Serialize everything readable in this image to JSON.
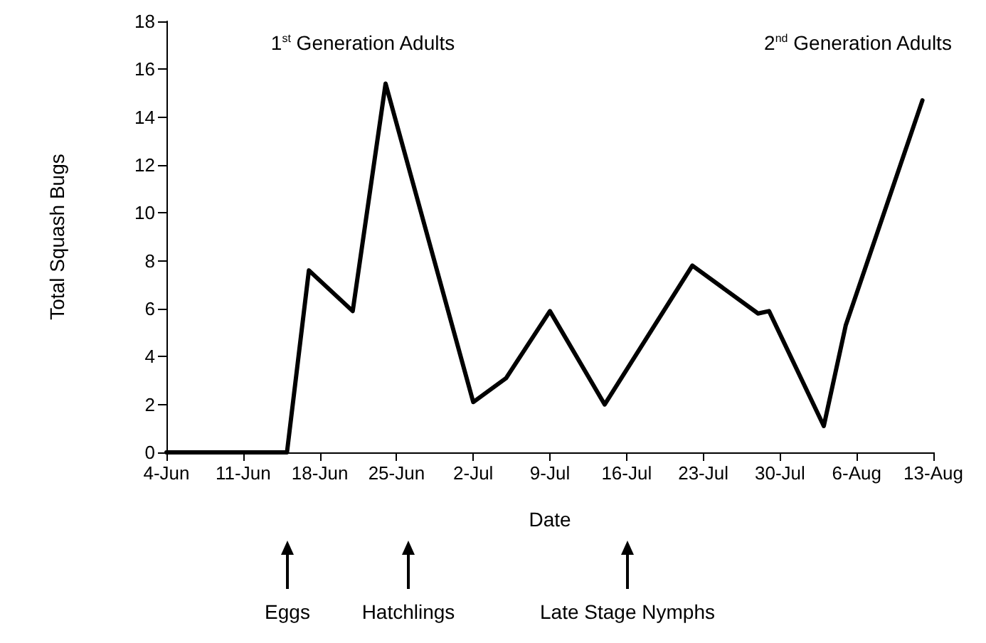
{
  "chart_data": {
    "type": "line",
    "xlabel": "Date",
    "ylabel": "Total Squash Bugs",
    "x": [
      "--06-04",
      "--06-15",
      "--06-17",
      "--06-21",
      "--06-24",
      "--07-02",
      "--07-05",
      "--07-09",
      "--07-14",
      "--07-22",
      "--07-28",
      "--07-29",
      "--08-03",
      "--08-05",
      "--08-12"
    ],
    "series": [
      {
        "color": "#000000",
        "values": [
          0,
          0,
          7.6,
          5.9,
          15.4,
          2.1,
          3.1,
          5.9,
          2.0,
          7.8,
          5.8,
          5.9,
          1.1,
          5.3,
          14.7
        ]
      }
    ],
    "xlim": [
      "--06-04",
      "--08-13"
    ],
    "xticks": [
      {
        "value": "--06-04",
        "label": "4-Jun"
      },
      {
        "value": "--06-11",
        "label": "11-Jun"
      },
      {
        "value": "--06-18",
        "label": "18-Jun"
      },
      {
        "value": "--06-25",
        "label": "25-Jun"
      },
      {
        "value": "--07-02",
        "label": "2-Jul"
      },
      {
        "value": "--07-09",
        "label": "9-Jul"
      },
      {
        "value": "--07-16",
        "label": "16-Jul"
      },
      {
        "value": "--07-23",
        "label": "23-Jul"
      },
      {
        "value": "--07-30",
        "label": "30-Jul"
      },
      {
        "value": "--08-06",
        "label": "6-Aug"
      },
      {
        "value": "--08-13",
        "label": "13-Aug"
      }
    ],
    "ylim": [
      0,
      18
    ],
    "yticks": [
      0,
      2,
      4,
      6,
      8,
      10,
      12,
      14,
      16,
      18
    ],
    "grid": false,
    "marker": "none",
    "line_style": "solid",
    "annotations": [
      "1$^{st}$ Generation Adults",
      "2$^{nd}$ Generation Adults",
      "Eggs",
      "Hatchlings",
      "Late Stage Nymphs"
    ]
  }
}
